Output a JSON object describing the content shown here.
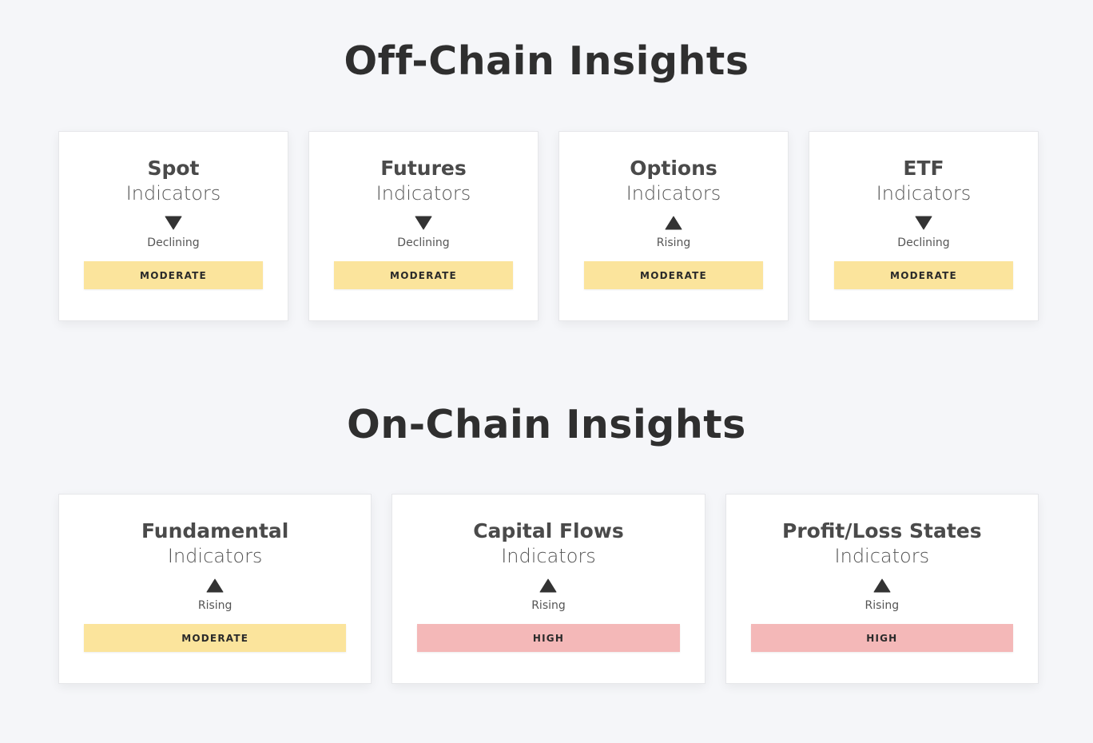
{
  "sections": [
    {
      "title": "Off-Chain Insights",
      "cards": [
        {
          "title": "Spot",
          "subtitle": "Indicators",
          "icon": "triangle-down",
          "trend": "Declining",
          "level": "MODERATE",
          "color": "#fbe49c"
        },
        {
          "title": "Futures",
          "subtitle": "Indicators",
          "icon": "triangle-down",
          "trend": "Declining",
          "level": "MODERATE",
          "color": "#fbe49c"
        },
        {
          "title": "Options",
          "subtitle": "Indicators",
          "icon": "triangle-up",
          "trend": "Rising",
          "level": "MODERATE",
          "color": "#fbe49c"
        },
        {
          "title": "ETF",
          "subtitle": "Indicators",
          "icon": "triangle-down",
          "trend": "Declining",
          "level": "MODERATE",
          "color": "#fbe49c"
        }
      ]
    },
    {
      "title": "On-Chain Insights",
      "cards": [
        {
          "title": "Fundamental",
          "subtitle": "Indicators",
          "icon": "triangle-up",
          "trend": "Rising",
          "level": "MODERATE",
          "color": "#fbe49c"
        },
        {
          "title": "Capital Flows",
          "subtitle": "Indicators",
          "icon": "triangle-up",
          "trend": "Rising",
          "level": "HIGH",
          "color": "#f4b8b8"
        },
        {
          "title": "Profit/Loss States",
          "subtitle": "Indicators",
          "icon": "triangle-up",
          "trend": "Rising",
          "level": "HIGH",
          "color": "#f4b8b8"
        }
      ]
    }
  ]
}
